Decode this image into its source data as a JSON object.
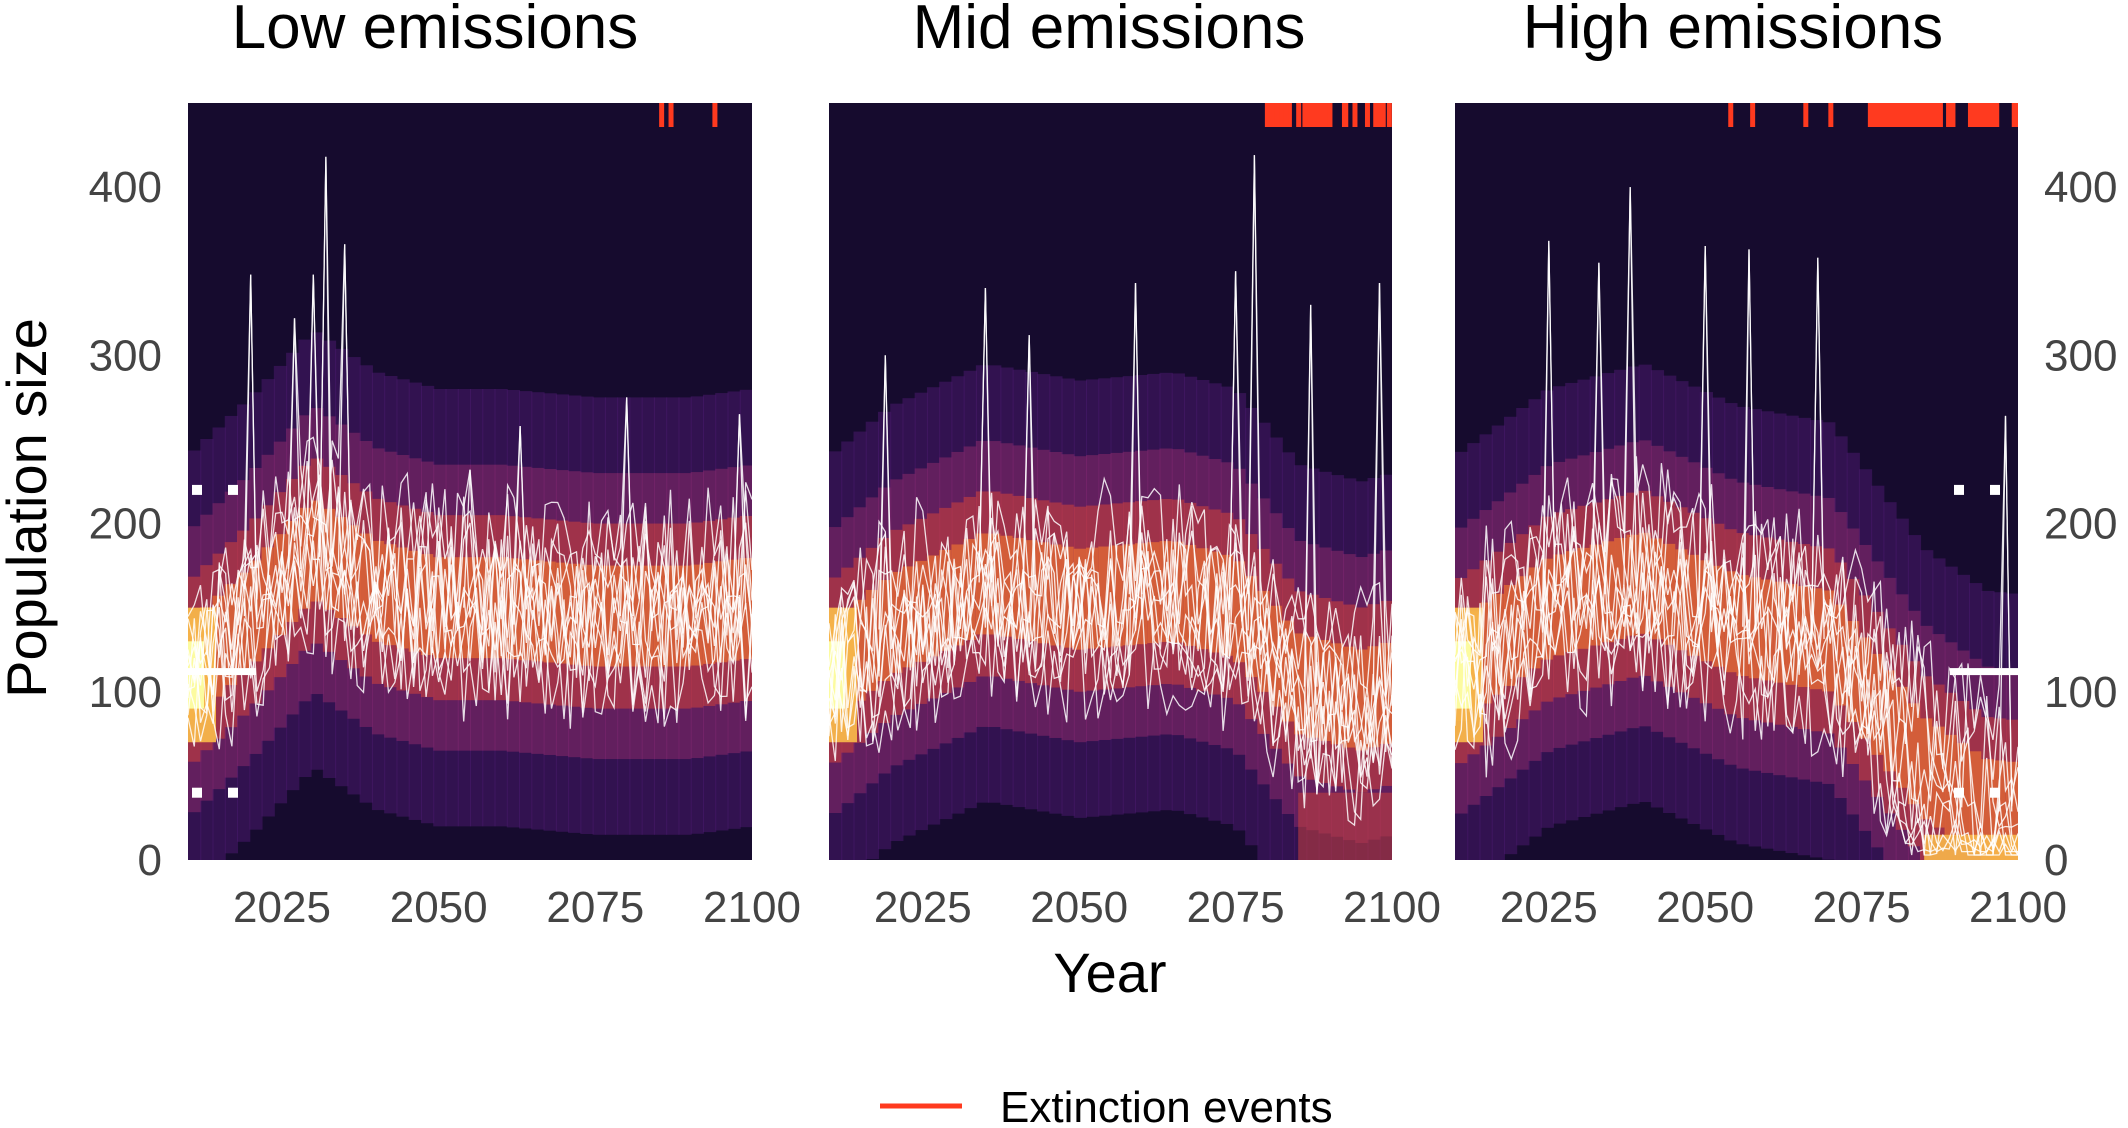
{
  "chart_data": {
    "type": "line",
    "ylabel": "Population size",
    "xlabel": "Year",
    "xlim": [
      2010,
      2100
    ],
    "ylim": [
      0,
      450
    ],
    "x_ticks": [
      2025,
      2050,
      2075,
      2100
    ],
    "y_ticks": [
      0,
      100,
      200,
      300,
      400
    ],
    "legend": {
      "label": "Extinction events",
      "color": "#ff3a1f",
      "position": "bottom-center"
    },
    "colors": {
      "heatmap_dark": "#160b2e",
      "heatmap_hot": "#fcffa4",
      "trajectory": "#ffffff",
      "extinction": "#ff3a1f"
    },
    "grid": false,
    "panels": [
      {
        "title": "Low emissions",
        "reference": {
          "median": 112,
          "lower": 40,
          "upper": 220,
          "side": "left"
        },
        "extinction_years": [
          2085.5,
          2087,
          2094
        ],
        "extinction_ranges": [],
        "trend": [
          [
            2010,
            110
          ],
          [
            2020,
            145
          ],
          [
            2030,
            185
          ],
          [
            2040,
            160
          ],
          [
            2050,
            150
          ],
          [
            2060,
            150
          ],
          [
            2075,
            145
          ],
          [
            2090,
            145
          ],
          [
            2100,
            150
          ]
        ],
        "peaks": [
          [
            2020,
            348
          ],
          [
            2027,
            322
          ],
          [
            2030,
            348
          ],
          [
            2032,
            418
          ],
          [
            2035,
            366
          ],
          [
            2055,
            232
          ],
          [
            2063,
            258
          ],
          [
            2080,
            275
          ],
          [
            2098,
            265
          ]
        ]
      },
      {
        "title": "Mid emissions",
        "reference": null,
        "extinction_years": [
          2080,
          2081.5,
          2083,
          2085,
          2086,
          2090,
          2092.5,
          2094,
          2096,
          2098,
          2099.5
        ],
        "extinction_ranges": [
          [
            2080,
            2084
          ],
          [
            2086,
            2090
          ],
          [
            2092,
            2093
          ],
          [
            2097,
            2099
          ]
        ],
        "trend": [
          [
            2010,
            110
          ],
          [
            2020,
            140
          ],
          [
            2035,
            165
          ],
          [
            2050,
            155
          ],
          [
            2065,
            160
          ],
          [
            2075,
            150
          ],
          [
            2085,
            105
          ],
          [
            2095,
            95
          ],
          [
            2100,
            100
          ]
        ],
        "peaks": [
          [
            2019,
            300
          ],
          [
            2035,
            340
          ],
          [
            2042,
            312
          ],
          [
            2059,
            343
          ],
          [
            2075,
            350
          ],
          [
            2078,
            419
          ],
          [
            2087,
            330
          ],
          [
            2098,
            343
          ]
        ]
      },
      {
        "title": "High emissions",
        "reference": {
          "median": 112,
          "lower": 40,
          "upper": 220,
          "side": "right"
        },
        "extinction_years": [
          2054,
          2057.5,
          2066,
          2070
        ],
        "extinction_ranges": [
          [
            2076,
            2088
          ],
          [
            2088.5,
            2090
          ],
          [
            2092,
            2097
          ],
          [
            2099,
            2100
          ]
        ],
        "trend": [
          [
            2010,
            110
          ],
          [
            2025,
            150
          ],
          [
            2040,
            165
          ],
          [
            2055,
            140
          ],
          [
            2070,
            130
          ],
          [
            2075,
            105
          ],
          [
            2085,
            55
          ],
          [
            2095,
            30
          ],
          [
            2100,
            28
          ]
        ],
        "peaks": [
          [
            2025,
            368
          ],
          [
            2033,
            355
          ],
          [
            2038,
            400
          ],
          [
            2050,
            365
          ],
          [
            2057,
            363
          ],
          [
            2068,
            358
          ],
          [
            2098,
            264
          ]
        ]
      }
    ]
  }
}
